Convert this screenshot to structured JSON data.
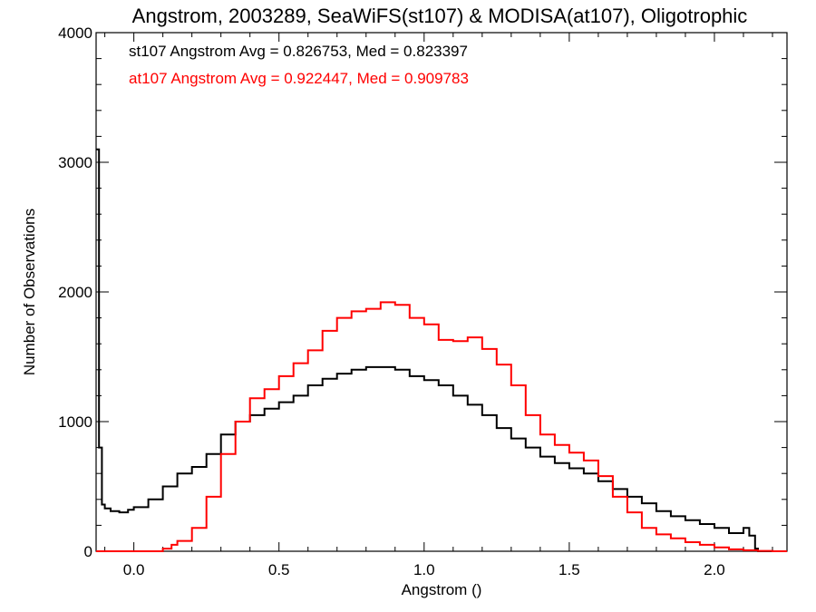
{
  "chart_data": {
    "type": "line",
    "title": "Angstrom, 2003289, SeaWiFS(st107) & MODISA(at107), Oligotrophic",
    "xlabel": "Angstrom ()",
    "ylabel": "Number of Observations",
    "xlim": [
      -0.13,
      2.25
    ],
    "ylim": [
      0,
      4000
    ],
    "x_ticks": [
      {
        "value": 0.0,
        "label": "0.0"
      },
      {
        "value": 0.5,
        "label": "0.5"
      },
      {
        "value": 1.0,
        "label": "1.0"
      },
      {
        "value": 1.5,
        "label": "1.5"
      },
      {
        "value": 2.0,
        "label": "2.0"
      }
    ],
    "y_ticks": [
      {
        "value": 0,
        "label": "0"
      },
      {
        "value": 1000,
        "label": "1000"
      },
      {
        "value": 2000,
        "label": "2000"
      },
      {
        "value": 3000,
        "label": "3000"
      },
      {
        "value": 4000,
        "label": "4000"
      }
    ],
    "grid": false,
    "annotations": [
      {
        "text": "st107 Angstrom Avg = 0.826753, Med = 0.823397",
        "color": "#000000"
      },
      {
        "text": "at107 Angstrom Avg = 0.922447, Med = 0.909783",
        "color": "#ff0000"
      }
    ],
    "series": [
      {
        "color": "#000000",
        "x": [
          -0.13,
          -0.12,
          -0.11,
          -0.1,
          -0.08,
          -0.05,
          -0.02,
          0.0,
          0.05,
          0.1,
          0.15,
          0.2,
          0.25,
          0.3,
          0.35,
          0.4,
          0.45,
          0.5,
          0.55,
          0.6,
          0.65,
          0.7,
          0.75,
          0.8,
          0.85,
          0.9,
          0.95,
          1.0,
          1.05,
          1.1,
          1.15,
          1.2,
          1.25,
          1.3,
          1.35,
          1.4,
          1.45,
          1.5,
          1.55,
          1.6,
          1.65,
          1.7,
          1.75,
          1.8,
          1.85,
          1.9,
          1.95,
          2.0,
          2.05,
          2.08,
          2.1,
          2.12,
          2.14,
          2.15,
          2.2,
          2.25
        ],
        "y": [
          3100,
          800,
          360,
          330,
          310,
          300,
          320,
          340,
          400,
          500,
          600,
          650,
          750,
          900,
          1000,
          1050,
          1100,
          1150,
          1200,
          1280,
          1330,
          1370,
          1400,
          1420,
          1420,
          1400,
          1350,
          1320,
          1280,
          1200,
          1130,
          1050,
          950,
          870,
          800,
          730,
          680,
          640,
          600,
          540,
          480,
          420,
          370,
          310,
          270,
          240,
          210,
          180,
          140,
          140,
          180,
          120,
          20,
          0,
          0,
          0
        ]
      },
      {
        "color": "#ff0000",
        "x": [
          -0.13,
          -0.05,
          0.0,
          0.05,
          0.1,
          0.13,
          0.15,
          0.2,
          0.25,
          0.3,
          0.35,
          0.4,
          0.45,
          0.5,
          0.55,
          0.6,
          0.65,
          0.7,
          0.75,
          0.8,
          0.85,
          0.9,
          0.95,
          1.0,
          1.05,
          1.1,
          1.15,
          1.2,
          1.25,
          1.3,
          1.35,
          1.4,
          1.45,
          1.5,
          1.55,
          1.6,
          1.65,
          1.7,
          1.75,
          1.8,
          1.85,
          1.9,
          1.95,
          2.0,
          2.05,
          2.1,
          2.15,
          2.2,
          2.25
        ],
        "y": [
          0,
          0,
          0,
          0,
          20,
          50,
          80,
          180,
          420,
          750,
          1000,
          1180,
          1250,
          1350,
          1450,
          1550,
          1700,
          1800,
          1850,
          1870,
          1920,
          1900,
          1800,
          1750,
          1630,
          1620,
          1650,
          1560,
          1440,
          1280,
          1050,
          900,
          820,
          760,
          700,
          580,
          420,
          300,
          180,
          130,
          100,
          70,
          50,
          30,
          15,
          8,
          3,
          0,
          0
        ]
      }
    ]
  }
}
